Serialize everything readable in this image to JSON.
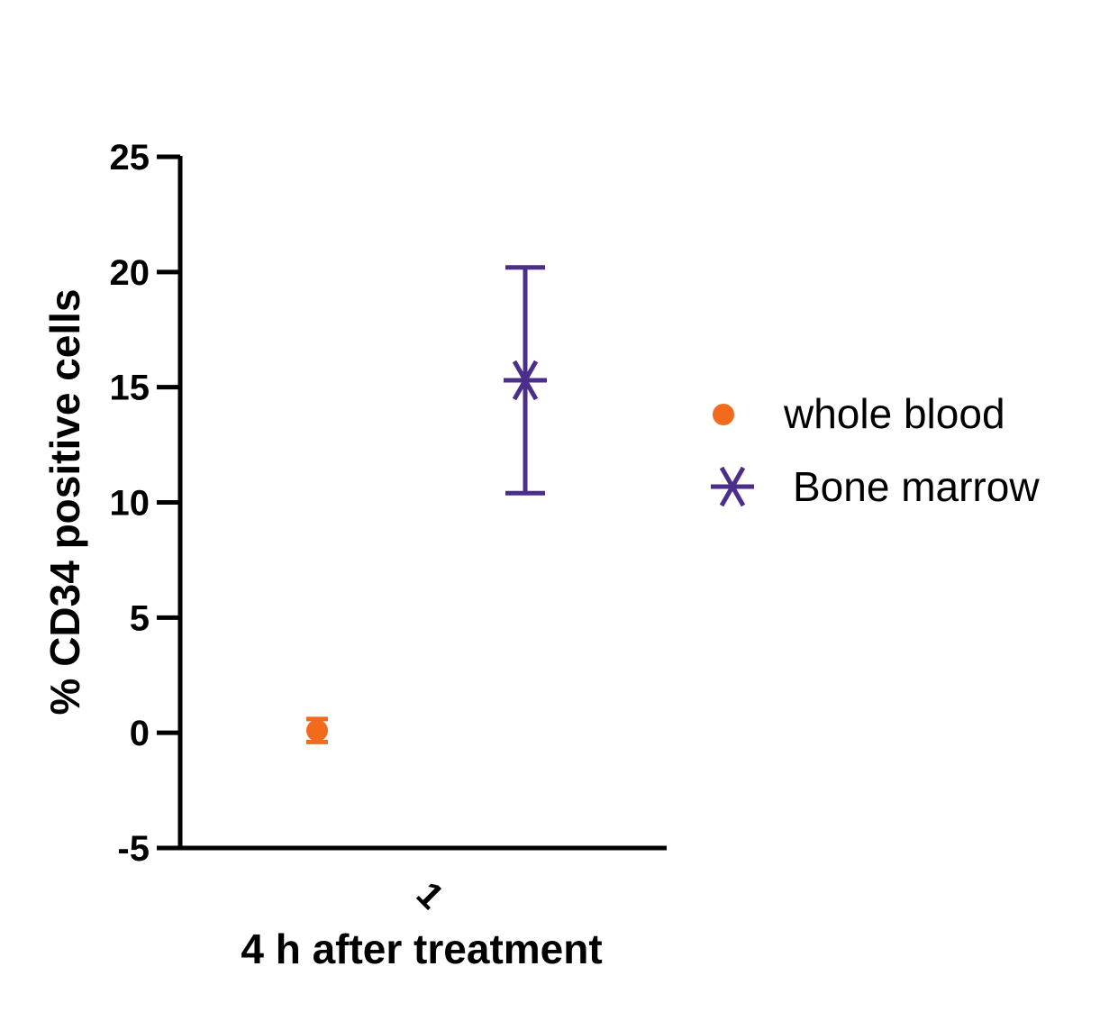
{
  "chart_data": {
    "type": "scatter",
    "ylabel": "% CD34 positive cells",
    "xlabel": "4 h after treatment",
    "categories": [
      "1"
    ],
    "ylim": [
      -5,
      25
    ],
    "yticks": [
      -5,
      0,
      5,
      10,
      15,
      20,
      25
    ],
    "grid": false,
    "legend_position": "right",
    "series": [
      {
        "name": "whole blood",
        "marker": "circle",
        "color": "#f26a1b",
        "x": 1,
        "y": 0.1,
        "error_low": -0.4,
        "error_high": 0.6
      },
      {
        "name": "Bone marrow",
        "marker": "asterisk",
        "color": "#4b2d8a",
        "x": 1,
        "y": 15.3,
        "error_low": 10.4,
        "error_high": 20.2
      }
    ]
  }
}
